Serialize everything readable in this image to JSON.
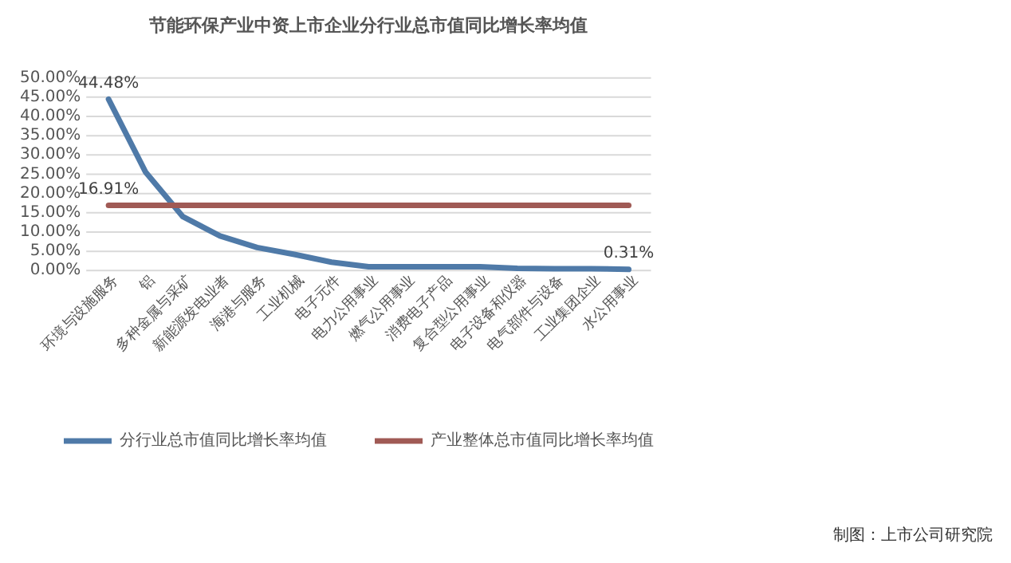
{
  "chart_data": {
    "type": "line",
    "title": "节能环保产业中资上市企业分行业总市值同比增长率均值",
    "categories": [
      "环境与设施服务",
      "铝",
      "多种金属与采矿",
      "新能源发电业者",
      "海港与服务",
      "工业机械",
      "电子元件",
      "电力公用事业",
      "燃气公用事业",
      "消费电子产品",
      "复合型公用事业",
      "电子设备和仪器",
      "电气部件与设备",
      "工业集团企业",
      "水公用事业"
    ],
    "series": [
      {
        "name": "分行业总市值同比增长率均值",
        "color": "#4f7aa8",
        "values": [
          44.48,
          25.5,
          14,
          9,
          6,
          4.2,
          2.2,
          1.0,
          1.0,
          1.0,
          1.0,
          0.6,
          0.5,
          0.5,
          0.31
        ],
        "value_labels": [
          "44.48%",
          null,
          null,
          null,
          null,
          null,
          null,
          null,
          null,
          null,
          null,
          null,
          null,
          null,
          "0.31%"
        ]
      },
      {
        "name": "产业整体总市值同比增长率均值",
        "color": "#a05a55",
        "values": [
          16.91,
          16.91,
          16.91,
          16.91,
          16.91,
          16.91,
          16.91,
          16.91,
          16.91,
          16.91,
          16.91,
          16.91,
          16.91,
          16.91,
          16.91
        ],
        "value_labels": [
          "16.91%",
          null,
          null,
          null,
          null,
          null,
          null,
          null,
          null,
          null,
          null,
          null,
          null,
          null,
          null
        ]
      }
    ],
    "ylim": [
      0,
      50
    ],
    "yticks": [
      {
        "value": 0,
        "label": "0.00%"
      },
      {
        "value": 5,
        "label": "5.00%"
      },
      {
        "value": 10,
        "label": "10.00%"
      },
      {
        "value": 15,
        "label": "15.00%"
      },
      {
        "value": 20,
        "label": "20.00%"
      },
      {
        "value": 25,
        "label": "25.00%"
      },
      {
        "value": 30,
        "label": "30.00%"
      },
      {
        "value": 35,
        "label": "35.00%"
      },
      {
        "value": 40,
        "label": "40.00%"
      },
      {
        "value": 45,
        "label": "45.00%"
      },
      {
        "value": 50,
        "label": "50.00%"
      }
    ],
    "grid": "y",
    "legend": "bottom",
    "marker": "none",
    "line_style": "solid",
    "annotations": [
      "制图：上市公司研究院"
    ]
  }
}
